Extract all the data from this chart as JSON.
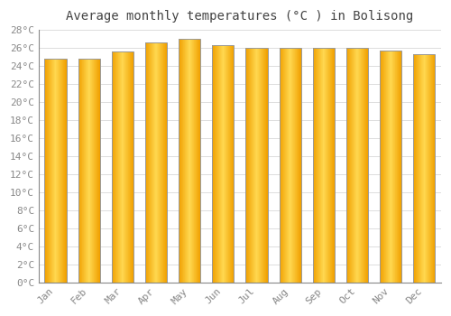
{
  "title": "Average monthly temperatures (°C ) in Bolisong",
  "months": [
    "Jan",
    "Feb",
    "Mar",
    "Apr",
    "May",
    "Jun",
    "Jul",
    "Aug",
    "Sep",
    "Oct",
    "Nov",
    "Dec"
  ],
  "values": [
    24.8,
    24.8,
    25.6,
    26.6,
    27.0,
    26.3,
    26.0,
    26.0,
    26.0,
    26.0,
    25.7,
    25.3
  ],
  "bar_color_center": "#FFD050",
  "bar_color_edge": "#F0A000",
  "bar_edge_color": "#999999",
  "ylim": [
    0,
    28
  ],
  "ytick_step": 2,
  "background_color": "#ffffff",
  "grid_color": "#dddddd",
  "title_fontsize": 10,
  "tick_fontsize": 8,
  "title_font": "monospace",
  "tick_font": "monospace",
  "figsize": [
    5.0,
    3.5
  ],
  "dpi": 100
}
